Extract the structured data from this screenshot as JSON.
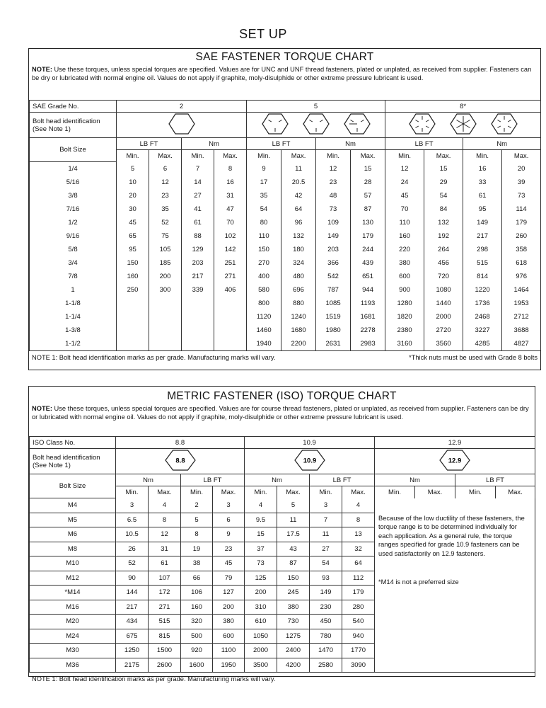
{
  "header": {
    "title": "SET UP"
  },
  "sae": {
    "title": "SAE FASTENER TORQUE CHART",
    "note_label": "NOTE:",
    "note": "Use these torques, unless special torques are specified. Values are for UNC and UNF thread fasteners, plated or unplated, as received from supplier. Fasteners can be dry or lubricated with normal engine oil. Values do not apply if graphite, moly-disulphide or other extreme pressure lubricant is used.",
    "grade_label": "SAE Grade No.",
    "grades": [
      "2",
      "5",
      "8*"
    ],
    "head_label": "Bolt head identification (See Note 1)",
    "bolt_size_label": "Bolt Size",
    "units": [
      "LB FT",
      "Nm",
      "LB FT",
      "Nm",
      "LB FT",
      "Nm"
    ],
    "minmax": [
      "Min.",
      "Max.",
      "Min.",
      "Max.",
      "Min.",
      "Max.",
      "Min.",
      "Max.",
      "Min.",
      "Max.",
      "Min.",
      "Max."
    ],
    "rows": [
      [
        "1/4",
        "5",
        "6",
        "7",
        "8",
        "9",
        "11",
        "12",
        "15",
        "12",
        "15",
        "16",
        "20"
      ],
      [
        "5/16",
        "10",
        "12",
        "14",
        "16",
        "17",
        "20.5",
        "23",
        "28",
        "24",
        "29",
        "33",
        "39"
      ],
      [
        "3/8",
        "20",
        "23",
        "27",
        "31",
        "35",
        "42",
        "48",
        "57",
        "45",
        "54",
        "61",
        "73"
      ],
      [
        "7/16",
        "30",
        "35",
        "41",
        "47",
        "54",
        "64",
        "73",
        "87",
        "70",
        "84",
        "95",
        "114"
      ],
      [
        "1/2",
        "45",
        "52",
        "61",
        "70",
        "80",
        "96",
        "109",
        "130",
        "110",
        "132",
        "149",
        "179"
      ],
      [
        "9/16",
        "65",
        "75",
        "88",
        "102",
        "110",
        "132",
        "149",
        "179",
        "160",
        "192",
        "217",
        "260"
      ],
      [
        "5/8",
        "95",
        "105",
        "129",
        "142",
        "150",
        "180",
        "203",
        "244",
        "220",
        "264",
        "298",
        "358"
      ],
      [
        "3/4",
        "150",
        "185",
        "203",
        "251",
        "270",
        "324",
        "366",
        "439",
        "380",
        "456",
        "515",
        "618"
      ],
      [
        "7/8",
        "160",
        "200",
        "217",
        "271",
        "400",
        "480",
        "542",
        "651",
        "600",
        "720",
        "814",
        "976"
      ],
      [
        "1",
        "250",
        "300",
        "339",
        "406",
        "580",
        "696",
        "787",
        "944",
        "900",
        "1080",
        "1220",
        "1464"
      ],
      [
        "1-1/8",
        null,
        null,
        null,
        null,
        "800",
        "880",
        "1085",
        "1193",
        "1280",
        "1440",
        "1736",
        "1953"
      ],
      [
        "1-1/4",
        null,
        null,
        null,
        null,
        "1120",
        "1240",
        "1519",
        "1681",
        "1820",
        "2000",
        "2468",
        "2712"
      ],
      [
        "1-3/8",
        null,
        null,
        null,
        null,
        "1460",
        "1680",
        "1980",
        "2278",
        "2380",
        "2720",
        "3227",
        "3688"
      ],
      [
        "1-1/2",
        null,
        null,
        null,
        null,
        "1940",
        "2200",
        "2631",
        "2983",
        "3160",
        "3560",
        "4285",
        "4827"
      ]
    ],
    "footer_note": "NOTE 1: Bolt head identification marks as per grade. Manufacturing marks will vary.",
    "footer_right": "*Thick nuts must be used with Grade 8 bolts"
  },
  "metric": {
    "title": "METRIC FASTENER (ISO) TORQUE CHART",
    "note_label": "NOTE:",
    "note": "Use these torques, unless special torques are specified. Values are for course thread fasteners, plated or unplated, as received from supplier. Fasteners can be dry or lubricated with normal engine oil. Values do not apply if graphite, moly-disulphide or other extreme pressure lubricant is used.",
    "class_label": "ISO Class No.",
    "classes": [
      "8.8",
      "10.9",
      "12.9"
    ],
    "head_label": "Bolt head identification (See Note 1)",
    "head_marks": [
      "8.8",
      "10.9",
      "12.9"
    ],
    "bolt_size_label": "Bolt Size",
    "units": [
      "Nm",
      "LB FT",
      "Nm",
      "LB FT",
      "Nm",
      "LB FT"
    ],
    "minmax": [
      "Min.",
      "Max.",
      "Min.",
      "Max.",
      "Min.",
      "Max.",
      "Min.",
      "Max.",
      "Min.",
      "Max.",
      "Min.",
      "Max."
    ],
    "rows": [
      [
        "M4",
        "3",
        "4",
        "2",
        "3",
        "4",
        "5",
        "3",
        "4"
      ],
      [
        "M5",
        "6.5",
        "8",
        "5",
        "6",
        "9.5",
        "11",
        "7",
        "8"
      ],
      [
        "M6",
        "10.5",
        "12",
        "8",
        "9",
        "15",
        "17.5",
        "11",
        "13"
      ],
      [
        "M8",
        "26",
        "31",
        "19",
        "23",
        "37",
        "43",
        "27",
        "32"
      ],
      [
        "M10",
        "52",
        "61",
        "38",
        "45",
        "73",
        "87",
        "54",
        "64"
      ],
      [
        "M12",
        "90",
        "107",
        "66",
        "79",
        "125",
        "150",
        "93",
        "112"
      ],
      [
        "*M14",
        "144",
        "172",
        "106",
        "127",
        "200",
        "245",
        "149",
        "179"
      ],
      [
        "M16",
        "217",
        "271",
        "160",
        "200",
        "310",
        "380",
        "230",
        "280"
      ],
      [
        "M20",
        "434",
        "515",
        "320",
        "380",
        "610",
        "730",
        "450",
        "540"
      ],
      [
        "M24",
        "675",
        "815",
        "500",
        "600",
        "1050",
        "1275",
        "780",
        "940"
      ],
      [
        "M30",
        "1250",
        "1500",
        "920",
        "1100",
        "2000",
        "2400",
        "1470",
        "1770"
      ],
      [
        "M36",
        "2175",
        "2600",
        "1600",
        "1950",
        "3500",
        "4200",
        "2580",
        "3090"
      ]
    ],
    "ductility_note": "Because of the low ductility of these fasteners, the torque range is to be determined individually for each application. As a general rule, the torque ranges specified for grade 10.9 fasteners can be used satisfactorily on 12.9 fasteners.",
    "m14_note": "*M14 is not a preferred size",
    "footer_note": "NOTE 1: Bolt head identification marks as per grade. Manufacturing marks will vary."
  }
}
